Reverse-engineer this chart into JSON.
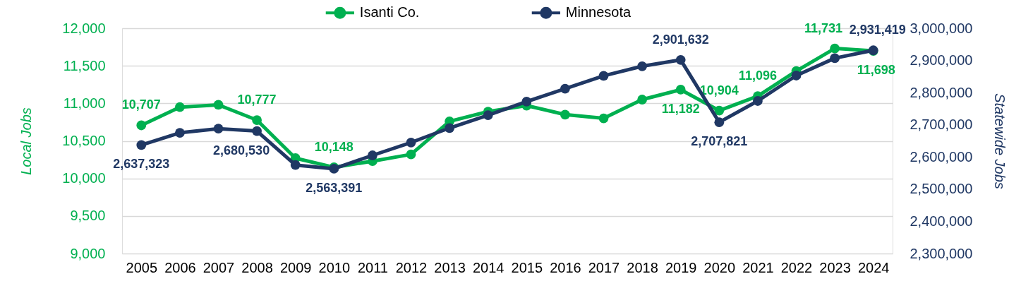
{
  "chart_data": {
    "type": "line",
    "categories": [
      "2005",
      "2006",
      "2007",
      "2008",
      "2009",
      "2010",
      "2011",
      "2012",
      "2013",
      "2014",
      "2015",
      "2016",
      "2017",
      "2018",
      "2019",
      "2020",
      "2021",
      "2022",
      "2023",
      "2024"
    ],
    "series": [
      {
        "name": "Isanti Co.",
        "color": "#00b050",
        "values": [
          10707,
          10950,
          10980,
          10777,
          10270,
          10148,
          10230,
          10320,
          10760,
          10890,
          10970,
          10850,
          10800,
          11050,
          11182,
          10904,
          11096,
          11430,
          11731,
          11698
        ],
        "value_labels": [
          "10,707",
          null,
          null,
          "10,777",
          null,
          "10,148",
          null,
          null,
          null,
          null,
          null,
          null,
          null,
          null,
          "11,182",
          "10,904",
          "11,096",
          null,
          "11,731",
          "11,698"
        ]
      },
      {
        "name": "Minnesota",
        "color": "#203864",
        "axis": "y2",
        "values": [
          2637323,
          2675000,
          2688000,
          2680530,
          2575000,
          2563391,
          2605000,
          2645000,
          2690000,
          2730000,
          2772000,
          2812000,
          2852000,
          2882000,
          2901632,
          2707821,
          2774000,
          2853000,
          2907000,
          2931419
        ],
        "value_labels": [
          "2,637,323",
          null,
          null,
          "2,680,530",
          null,
          "2,563,391",
          null,
          null,
          null,
          null,
          null,
          null,
          null,
          null,
          "2,901,632",
          "2,707,821",
          null,
          null,
          null,
          "2,931,419"
        ]
      }
    ],
    "ylabel": "Local Jobs",
    "y2label": "Statewide Jobs",
    "ylim": [
      9000,
      12000
    ],
    "yticks": [
      {
        "value": 9000,
        "label": "9,000"
      },
      {
        "value": 9500,
        "label": "9,500"
      },
      {
        "value": 10000,
        "label": "10,000"
      },
      {
        "value": 10500,
        "label": "10,500"
      },
      {
        "value": 11000,
        "label": "11,000"
      },
      {
        "value": 11500,
        "label": "11,500"
      },
      {
        "value": 12000,
        "label": "12,000"
      }
    ],
    "y2lim": [
      2300000,
      3000000
    ],
    "y2ticks": [
      {
        "value": 2300000,
        "label": "2,300,000"
      },
      {
        "value": 2400000,
        "label": "2,400,000"
      },
      {
        "value": 2500000,
        "label": "2,500,000"
      },
      {
        "value": 2600000,
        "label": "2,600,000"
      },
      {
        "value": 2700000,
        "label": "2,700,000"
      },
      {
        "value": 2800000,
        "label": "2,800,000"
      },
      {
        "value": 2900000,
        "label": "2,900,000"
      },
      {
        "value": 3000000,
        "label": "3,000,000"
      }
    ],
    "grid": "y",
    "legend": "top",
    "marker": "circle",
    "line_style": "solid"
  }
}
